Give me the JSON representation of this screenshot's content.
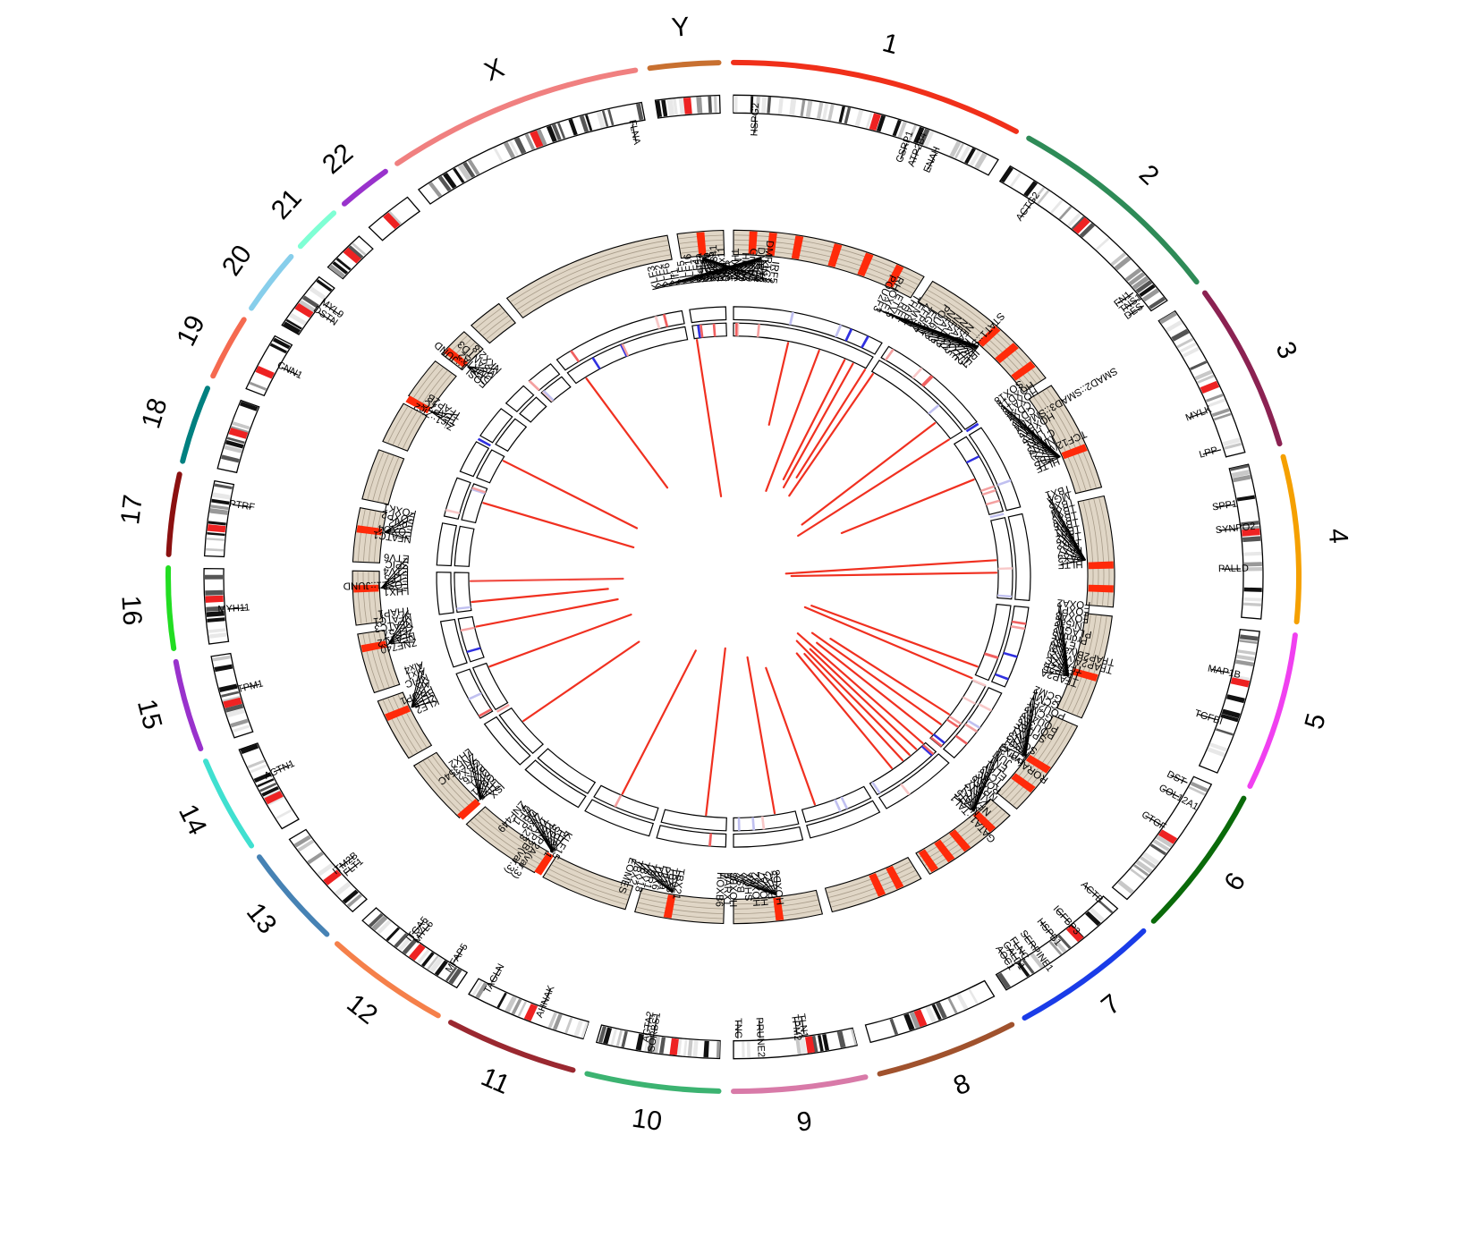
{
  "chromosomes": [
    {
      "label": "1",
      "start": 0,
      "end": 30,
      "color": "#f0301a"
    },
    {
      "label": "2",
      "start": 31.5,
      "end": 55,
      "color": "#2e8b57"
    },
    {
      "label": "3",
      "start": 56.5,
      "end": 75,
      "color": "#8b2252"
    },
    {
      "label": "4",
      "start": 76.5,
      "end": 95,
      "color": "#f5a000"
    },
    {
      "label": "5",
      "start": 96.5,
      "end": 114,
      "color": "#f040f0"
    },
    {
      "label": "6",
      "start": 115.5,
      "end": 132,
      "color": "#0a6a0a"
    },
    {
      "label": "7",
      "start": 133.5,
      "end": 149,
      "color": "#1a3ce8"
    },
    {
      "label": "8",
      "start": 150.5,
      "end": 165,
      "color": "#a0522d"
    },
    {
      "label": "9",
      "start": 166.5,
      "end": 180,
      "color": "#d87aa8"
    },
    {
      "label": "10",
      "start": 181.5,
      "end": 195,
      "color": "#3cb371"
    },
    {
      "label": "11",
      "start": 196.5,
      "end": 210,
      "color": "#9a2830"
    },
    {
      "label": "12",
      "start": 211.5,
      "end": 224.5,
      "color": "#f5804a"
    },
    {
      "label": "13",
      "start": 226,
      "end": 237,
      "color": "#4682b4"
    },
    {
      "label": "14",
      "start": 238.5,
      "end": 249,
      "color": "#40e0d0"
    },
    {
      "label": "15",
      "start": 250.5,
      "end": 260.5,
      "color": "#9932cc"
    },
    {
      "label": "16",
      "start": 262,
      "end": 271,
      "color": "#22dd22"
    },
    {
      "label": "17",
      "start": 272.5,
      "end": 281.5,
      "color": "#8b1010"
    },
    {
      "label": "18",
      "start": 283,
      "end": 291.5,
      "color": "#008080"
    },
    {
      "label": "19",
      "start": 293,
      "end": 300,
      "color": "#f56a50"
    },
    {
      "label": "20",
      "start": 301.5,
      "end": 308.5,
      "color": "#87ceeb"
    },
    {
      "label": "21",
      "start": 310,
      "end": 315,
      "color": "#7fffd4"
    },
    {
      "label": "22",
      "start": 316.5,
      "end": 322,
      "color": "#9932cc"
    },
    {
      "label": "X",
      "start": 323.5,
      "end": 350,
      "color": "#f08080"
    },
    {
      "label": "Y",
      "start": 351.5,
      "end": 358.5,
      "color": "#c87030"
    }
  ],
  "genes": [
    {
      "label": "HSPG2",
      "pos": 2.5
    },
    {
      "label": "CSRP1",
      "pos": 20
    },
    {
      "label": "ATP2B4",
      "pos": 21.5
    },
    {
      "label": "ENAH",
      "pos": 23.5
    },
    {
      "label": "ACTG2",
      "pos": 36
    },
    {
      "label": "FN1",
      "pos": 52
    },
    {
      "label": "TNS1",
      "pos": 53
    },
    {
      "label": "DES",
      "pos": 54
    },
    {
      "label": "MYLK",
      "pos": 69
    },
    {
      "label": "LPP",
      "pos": 74
    },
    {
      "label": "SPP1",
      "pos": 81
    },
    {
      "label": "SYNPO2",
      "pos": 84
    },
    {
      "label": "PALLD",
      "pos": 89
    },
    {
      "label": "MAP1B",
      "pos": 102
    },
    {
      "label": "TGFBI",
      "pos": 108
    },
    {
      "label": "DST",
      "pos": 116.5
    },
    {
      "label": "COL12A1",
      "pos": 118.5
    },
    {
      "label": "CTGF",
      "pos": 122.5
    },
    {
      "label": "ACTB",
      "pos": 134
    },
    {
      "label": "IGFBP3",
      "pos": 138.5
    },
    {
      "label": "HSPB1",
      "pos": 141
    },
    {
      "label": "SERPINE1",
      "pos": 143.5
    },
    {
      "label": "FLNC",
      "pos": 145
    },
    {
      "label": "CALD1",
      "pos": 146
    },
    {
      "label": "AOC1",
      "pos": 147
    },
    {
      "label": "TLN1",
      "pos": 172
    },
    {
      "label": "TPM2",
      "pos": 172.8
    },
    {
      "label": "PRUNE2",
      "pos": 177
    },
    {
      "label": "TNC",
      "pos": 179.5
    },
    {
      "label": "SORBS1",
      "pos": 189
    },
    {
      "label": "ACTA2",
      "pos": 189.8
    },
    {
      "label": "AHNAK",
      "pos": 202
    },
    {
      "label": "TAGLN",
      "pos": 208.5
    },
    {
      "label": "MFAP5",
      "pos": 213.5
    },
    {
      "label": "MYL6",
      "pos": 218.5
    },
    {
      "label": "ITGA5",
      "pos": 219.3
    },
    {
      "label": "FLT1",
      "pos": 230
    },
    {
      "label": "ITM2B",
      "pos": 231
    },
    {
      "label": "ACTN1",
      "pos": 245
    },
    {
      "label": "TPM1",
      "pos": 256
    },
    {
      "label": "MYH11",
      "pos": 266
    },
    {
      "label": "PTRF",
      "pos": 279
    },
    {
      "label": "CNN1",
      "pos": 297
    },
    {
      "label": "DSTN",
      "pos": 305
    },
    {
      "label": "MYL9",
      "pos": 306.2
    },
    {
      "label": "FLNA",
      "pos": 348.5
    }
  ],
  "tf_clusters": [
    {
      "pos": 4.5,
      "dir": "ccw",
      "labels": [
        "Klf12",
        "SP4",
        "SP9",
        "SP3",
        "THAP1",
        "SP8",
        "SP1",
        "KLF15",
        "KLF11",
        "KLF4",
        "KLF16",
        "KLF5",
        "Klf1",
        "KLF6",
        "KLF2",
        "KLF3"
      ]
    },
    {
      "pos": 44,
      "dir": "ccw",
      "labels": [
        "IRF1",
        "STAT1::STAT2",
        "HLTF",
        "NFATC5",
        "NFATC1",
        "NFATC2",
        "NFATC3",
        "POU6F2",
        "EGR1",
        "ZFP57",
        "EMX1",
        "THAP1",
        "REL",
        "ETV5",
        "RHOXF1",
        "POU2F3"
      ]
    },
    {
      "pos": 68,
      "dir": "ccw",
      "labels": [
        "HLTF",
        "TBP",
        "TCF12(var.2)",
        "NR1I3",
        "CTCFL",
        "HIC2",
        "HOXB13",
        "SMAD2::SMAD3::SMAD4",
        "CDX2",
        "CDX4",
        "HOXA13",
        "HOXD13",
        "SOX18"
      ]
    },
    {
      "pos": 87,
      "dir": "ccw",
      "labels": [
        "HLTF",
        "PAX3",
        "PAX7",
        "Pax2",
        "TBX2",
        "TBR1",
        "TBX6",
        "TBX3",
        "TBX4",
        "TBX5",
        "MGA",
        "TBX1"
      ]
    },
    {
      "pos": 108,
      "dir": "ccw",
      "labels": [
        "TFAP2A",
        "TFAP2B",
        "TFAP2C",
        "TFAP2A(var.2)",
        "TFAP2B(var.3)",
        "ETS2",
        "Prdm15",
        "PLAGL2",
        "Nr5a2",
        "FOXA3",
        "FOXP1",
        "FOXA2"
      ]
    },
    {
      "pos": 124,
      "dir": "ccw",
      "labels": [
        "PITX3",
        "Foxq1",
        "SOX13",
        "YY1",
        "SPDEF",
        "POU3F3",
        "POU4F2",
        "GCM2",
        "POU2F1",
        "GCM1",
        "GCM2"
      ]
    },
    {
      "pos": 137,
      "dir": "ccw",
      "labels": [
        "GATA1::TAL1",
        "NFAT5",
        "NFATC1",
        "KLF17",
        "NR2F6",
        "RORC",
        "TCF3",
        "ELK1",
        "EN1",
        "JUN",
        "RORA(var.2)"
      ]
    },
    {
      "pos": 173,
      "dir": "cw",
      "labels": [
        "HOXD8",
        "PITX2",
        "HOXA7",
        "HOXB2",
        "SHOX",
        "BSX",
        "HOXB8",
        "BARX1",
        "HOXB6"
      ]
    },
    {
      "pos": 190,
      "dir": "cw",
      "labels": [
        "TBX21",
        "TBX3",
        "Ptf1a",
        "TBX6",
        "TBR1",
        "TBX18",
        "TBX2",
        "EOMES"
      ]
    },
    {
      "pos": 211,
      "dir": "cw",
      "labels": [
        "KLF15",
        "THAP1",
        "SP9",
        "TFAP2A(var.3)",
        "TFAP2B(var.3)",
        "Zfx423",
        "DBP",
        "GFI1",
        "ZNF449"
      ]
    },
    {
      "pos": 226,
      "dir": "cw",
      "labels": [
        "ISX",
        "LHX5",
        "GBX1",
        "DIX1",
        "PAX6",
        "GBX2",
        "ZNF354C",
        "LHX2"
      ]
    },
    {
      "pos": 246,
      "dir": "cw",
      "labels": [
        "KLF2",
        "KLF5",
        "PROP1",
        "Arx",
        "NFIC",
        "Alx1",
        "Alx4"
      ]
    },
    {
      "pos": 258,
      "dir": "cw",
      "labels": [
        "ZNF740",
        "NFATC2",
        "ZFP57",
        "NFATC3",
        "NFATC1",
        "THAP1"
      ]
    },
    {
      "pos": 268,
      "dir": "cw",
      "labels": [
        "LHX1",
        "FOSL1::JUND",
        "ELF5",
        "ETV4",
        "SPIC",
        "ETV6"
      ]
    },
    {
      "pos": 278,
      "dir": "cw",
      "labels": [
        "NFATC1",
        "FOXO4",
        "Foxj2",
        "FOXP2",
        "FOXK1"
      ]
    },
    {
      "pos": 301,
      "dir": "cw",
      "labels": [
        "Zic1::Zic2",
        "TFAP2C",
        "TFAP2B"
      ]
    },
    {
      "pos": 311,
      "dir": "cw",
      "labels": [
        "FOSL1::JUND",
        "DMRTA2",
        "MSANTD3",
        "NKX2-8"
      ]
    },
    {
      "pos": 355,
      "dir": "cw",
      "labels": [
        "Stat5a",
        "Stat5b",
        "ZNF341",
        "Rhox11",
        "VDR",
        "NFIA",
        "HIF1A",
        "Gmeb1",
        "DMRT3",
        "DMRTC2",
        "IRF5"
      ]
    }
  ],
  "tf_hits": [
    3,
    6,
    10,
    16,
    21,
    26,
    44,
    48,
    52,
    68,
    88,
    92,
    107,
    124,
    128,
    137,
    142,
    145,
    148,
    154,
    157,
    173,
    190,
    211,
    226,
    246,
    258,
    268,
    278,
    301,
    311,
    355
  ],
  "links": [
    {
      "pos": 12,
      "len": 0.35,
      "shade": "#f03020"
    },
    {
      "pos": 19,
      "len": 0.62,
      "shade": "#f03020"
    },
    {
      "pos": 25,
      "len": 0.55,
      "shade": "#f03020"
    },
    {
      "pos": 27,
      "len": 0.58,
      "shade": "#f03020"
    },
    {
      "pos": 30,
      "len": 0.52,
      "shade": "#f03020"
    },
    {
      "pos": 32,
      "len": 0.6,
      "shade": "#f03020"
    },
    {
      "pos": 50,
      "len": 0.66,
      "shade": "#f03020"
    },
    {
      "pos": 55,
      "len": 0.7,
      "shade": "#f03020"
    },
    {
      "pos": 66,
      "len": 0.55,
      "shade": "#f03020"
    },
    {
      "pos": 86,
      "len": 0.8,
      "shade": "#f03020"
    },
    {
      "pos": 89,
      "len": 0.78,
      "shade": "#f03020"
    },
    {
      "pos": 112,
      "len": 0.68,
      "shade": "#f03020"
    },
    {
      "pos": 115,
      "len": 0.7,
      "shade": "#f03020"
    },
    {
      "pos": 125,
      "len": 0.55,
      "shade": "#f03020"
    },
    {
      "pos": 128,
      "len": 0.62,
      "shade": "#f03020"
    },
    {
      "pos": 131,
      "len": 0.58,
      "shade": "#f03020"
    },
    {
      "pos": 134,
      "len": 0.66,
      "shade": "#f03020"
    },
    {
      "pos": 136,
      "len": 0.58,
      "shade": "#f03020"
    },
    {
      "pos": 138,
      "len": 0.64,
      "shade": "#f03020"
    },
    {
      "pos": 140,
      "len": 0.58,
      "shade": "#f03020"
    },
    {
      "pos": 143,
      "len": 0.6,
      "shade": "#f03020"
    },
    {
      "pos": 162,
      "len": 0.6,
      "shade": "#f03020"
    },
    {
      "pos": 171,
      "len": 0.66,
      "shade": "#f03020"
    },
    {
      "pos": 186,
      "len": 0.7,
      "shade": "#f03020"
    },
    {
      "pos": 205,
      "len": 0.66,
      "shade": "#f03020"
    },
    {
      "pos": 233,
      "len": 0.55,
      "shade": "#f03020"
    },
    {
      "pos": 248,
      "len": 0.58,
      "shade": "#f03020"
    },
    {
      "pos": 258,
      "len": 0.55,
      "shade": "#f03020"
    },
    {
      "pos": 264,
      "len": 0.52,
      "shade": "#f03020"
    },
    {
      "pos": 269,
      "len": 0.58,
      "shade": "#f04a40"
    },
    {
      "pos": 288,
      "len": 0.6,
      "shade": "#f03020"
    },
    {
      "pos": 299,
      "len": 0.58,
      "shade": "#f03020"
    },
    {
      "pos": 326,
      "len": 0.55,
      "shade": "#f03020"
    },
    {
      "pos": 352,
      "len": 0.66,
      "shade": "#f03020"
    }
  ]
}
